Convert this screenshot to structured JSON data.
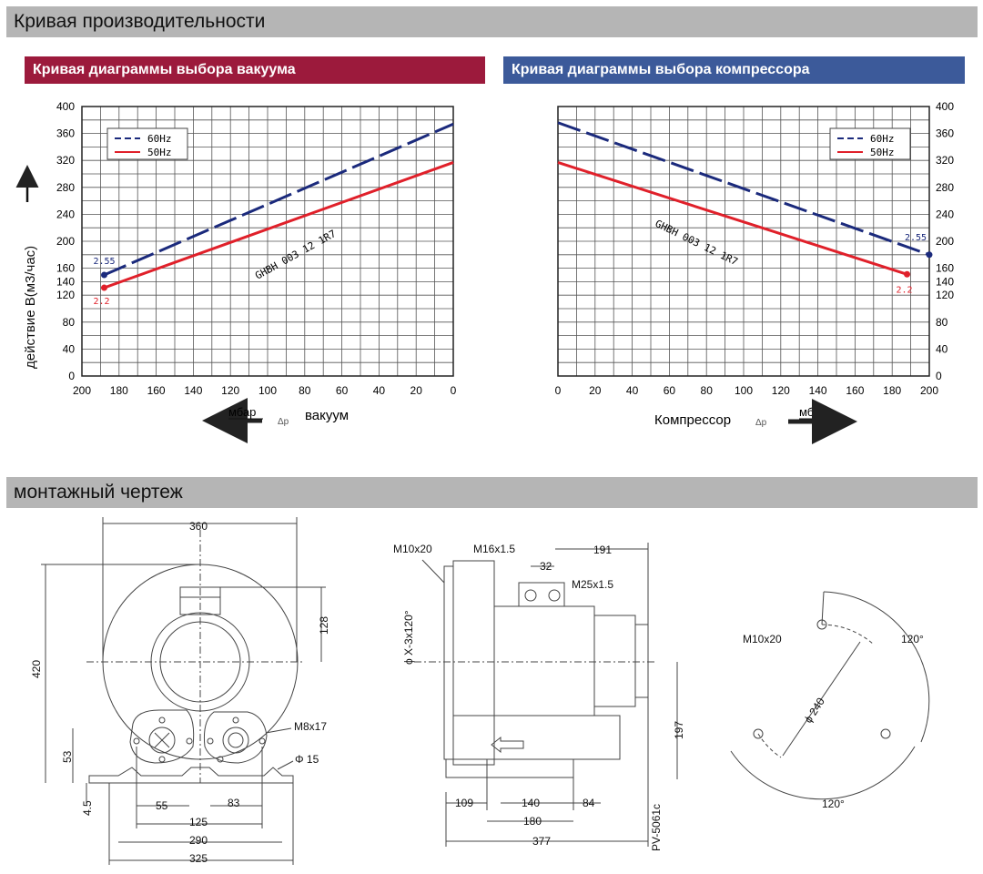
{
  "sections": {
    "performance": "Кривая производительности",
    "mounting": "монтажный чертеж"
  },
  "charts_headers": {
    "vacuum": "Кривая диаграммы выбора вакуума",
    "compressor": "Кривая диаграммы выбора компрессора",
    "vacuum_color": "#9c1a3c",
    "compressor_color": "#3c5a9a"
  },
  "chart_data": [
    {
      "type": "line",
      "title": "Кривая диаграммы выбора вакуума",
      "ylabel": "действие  В(м3/час)",
      "xlabel": "вакуум",
      "x_unit": "мбар",
      "x_symbol": "Δp",
      "x_reversed": true,
      "xlim": [
        0,
        200
      ],
      "ylim": [
        0,
        400
      ],
      "x_ticks": [
        200,
        180,
        160,
        140,
        120,
        100,
        80,
        60,
        40,
        20,
        0
      ],
      "y_ticks": [
        0,
        40,
        80,
        120,
        140,
        160,
        200,
        240,
        280,
        320,
        360,
        400
      ],
      "grid": true,
      "legend": "top-left",
      "model_label": "GHBH 003 12 1R7",
      "series": [
        {
          "name": "60Hz",
          "style": "dashed",
          "color": "#1b2a7c",
          "x": [
            188,
            0
          ],
          "y": [
            150,
            374
          ],
          "end_label": "2.55"
        },
        {
          "name": "50Hz",
          "style": "solid",
          "color": "#e0202a",
          "x": [
            188,
            0
          ],
          "y": [
            131,
            317
          ],
          "end_label": "2.2"
        }
      ]
    },
    {
      "type": "line",
      "title": "Кривая диаграммы выбора компрессора",
      "xlabel": "Компрессор",
      "x_unit": "мбар",
      "x_symbol": "Δp",
      "xlim": [
        0,
        200
      ],
      "ylim": [
        0,
        400
      ],
      "x_ticks": [
        0,
        20,
        40,
        60,
        80,
        100,
        120,
        140,
        160,
        180,
        200
      ],
      "y_ticks": [
        0,
        40,
        80,
        120,
        140,
        160,
        200,
        240,
        280,
        320,
        360,
        400
      ],
      "grid": true,
      "legend": "top-right",
      "model_label": "GHBH 003 12 1R7",
      "series": [
        {
          "name": "60Hz",
          "style": "dashed",
          "color": "#1b2a7c",
          "x": [
            0,
            200
          ],
          "y": [
            376,
            180
          ],
          "end_label": "2.55"
        },
        {
          "name": "50Hz",
          "style": "solid",
          "color": "#e0202a",
          "x": [
            0,
            188
          ],
          "y": [
            317,
            151
          ],
          "end_label": "2.2"
        }
      ]
    }
  ],
  "drawing": {
    "front": {
      "width_360": "360",
      "height_420": "420",
      "dim_128": "128",
      "dim_53": "53",
      "dim_4_5": "4.5",
      "dim_55": "55",
      "dim_83": "83",
      "dim_125": "125",
      "dim_290": "290",
      "dim_325": "325",
      "m8x17": "M8x17",
      "phi15": "Φ 15"
    },
    "side": {
      "m10x20": "M10x20",
      "m16": "M16x1.5",
      "m25": "M25x1.5",
      "dim_32": "32",
      "dim_191": "191",
      "phi_x": "ϕ X-3x120°",
      "dim_197": "197",
      "dim_109": "109",
      "dim_140": "140",
      "dim_84": "84",
      "dim_180": "180",
      "dim_377": "377",
      "pv_code": "PV-5061c"
    },
    "flange": {
      "m10x20": "M10x20",
      "angle_top": "120°",
      "angle_bottom": "120°",
      "phi240": "ϕ 240"
    }
  }
}
